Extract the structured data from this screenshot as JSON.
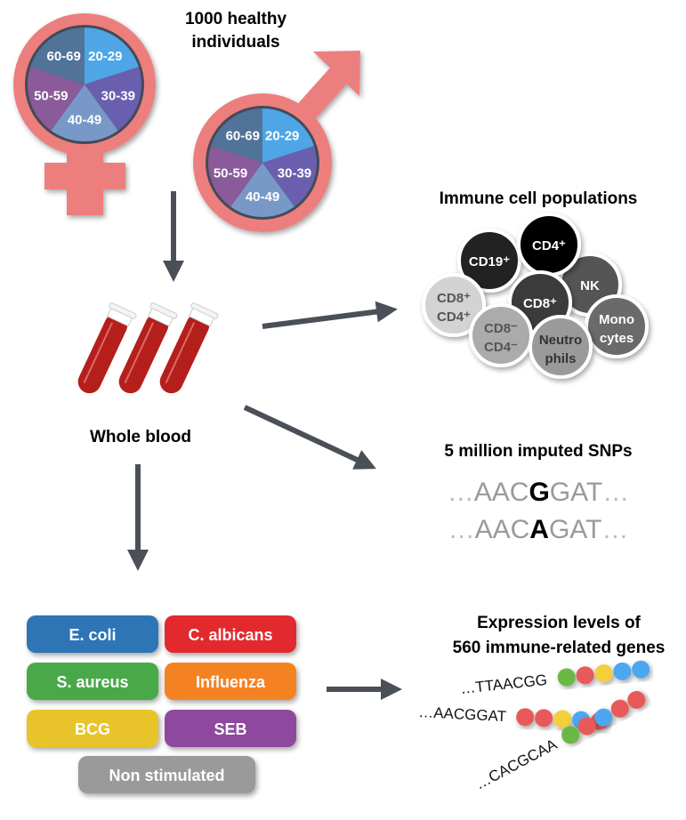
{
  "cohort": {
    "title_line1": "1000 healthy",
    "title_line2": "individuals",
    "age_groups": [
      {
        "label": "20-29",
        "color": "#4ea6e6"
      },
      {
        "label": "30-39",
        "color": "#6a5fae"
      },
      {
        "label": "40-49",
        "color": "#7899c8"
      },
      {
        "label": "50-59",
        "color": "#8a5a9a"
      },
      {
        "label": "60-69",
        "color": "#51739a"
      }
    ],
    "symbol_color": "#ec7f7e"
  },
  "blood": {
    "label": "Whole blood",
    "tube_color": "#b51f1b"
  },
  "immune": {
    "title": "Immune cell populations",
    "cells": [
      {
        "id": "nk",
        "line1": "NK",
        "line2": "",
        "fill": "#555555",
        "text": "#ffffff"
      },
      {
        "id": "cd19",
        "line1": "CD19⁺",
        "line2": "",
        "fill": "#222222",
        "text": "#ffffff"
      },
      {
        "id": "cd4",
        "line1": "CD4⁺",
        "line2": "",
        "fill": "#000000",
        "text": "#ffffff"
      },
      {
        "id": "cd8",
        "line1": "CD8⁺",
        "line2": "",
        "fill": "#3a3a3a",
        "text": "#ffffff"
      },
      {
        "id": "cd8cd4",
        "line1": "CD8⁺",
        "line2": "CD4⁺",
        "fill": "#d3d3d3",
        "text": "#555555"
      },
      {
        "id": "mono",
        "line1": "Mono",
        "line2": "cytes",
        "fill": "#6b6b6b",
        "text": "#ffffff"
      },
      {
        "id": "dn",
        "line1": "CD8⁻",
        "line2": "CD4⁻",
        "fill": "#ababab",
        "text": "#555555"
      },
      {
        "id": "neutro",
        "line1": "Neutro",
        "line2": "phils",
        "fill": "#9a9a9a",
        "text": "#333333"
      }
    ]
  },
  "snps": {
    "title": "5 million imputed SNPs",
    "rows": [
      {
        "prefix": "…",
        "left": "AAC",
        "variant": "G",
        "right": "GAT",
        "suffix": "…"
      },
      {
        "prefix": "…",
        "left": "AAC",
        "variant": "A",
        "right": "GAT",
        "suffix": "…"
      }
    ]
  },
  "stimuli": [
    {
      "label": "E. coli",
      "color": "#2e75b6"
    },
    {
      "label": "C. albicans",
      "color": "#e2292d"
    },
    {
      "label": "S. aureus",
      "color": "#4aa94a"
    },
    {
      "label": "Influenza",
      "color": "#f58220"
    },
    {
      "label": "BCG",
      "color": "#e8c42b"
    },
    {
      "label": "SEB",
      "color": "#8e4a9e"
    },
    {
      "label": "Non stimulated",
      "color": "#9a9a9a"
    }
  ],
  "expression": {
    "title_line1": "Expression levels of",
    "title_line2": "560 immune-related genes",
    "strands": [
      {
        "seq": "…TTAACGG",
        "dots": [
          "#6ab845",
          "#e85a5a",
          "#f2cf3a",
          "#4ea6f0",
          "#4ea6f0"
        ]
      },
      {
        "seq": "…AACGGAT",
        "dots": [
          "#e85a5a",
          "#e85a5a",
          "#f2cf3a",
          "#4ea6f0",
          "#e85a5a"
        ]
      },
      {
        "seq": "…CACGCAA",
        "dots": [
          "#6ab845",
          "#e85a5a",
          "#4ea6f0",
          "#e85a5a",
          "#e85a5a"
        ]
      }
    ]
  },
  "arrow_color": "#4a4f58"
}
